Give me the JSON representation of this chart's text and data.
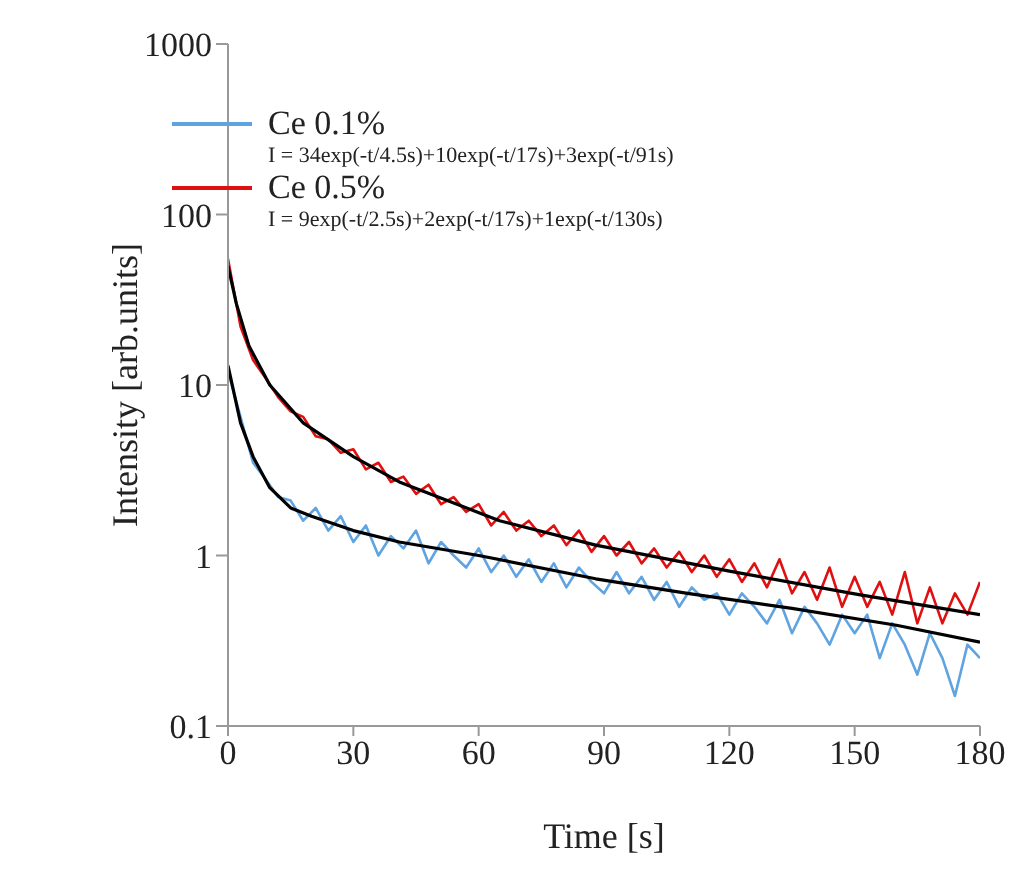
{
  "chart_data": {
    "type": "line",
    "xlabel": "Time [s]",
    "ylabel": "Intensity [arb.units]",
    "log": "y",
    "xlim": [
      0,
      180
    ],
    "xticks": [
      0,
      30,
      60,
      90,
      120,
      150,
      180
    ],
    "ylim": [
      0.1,
      1000
    ],
    "yticks": [
      {
        "value": 0.1,
        "label": "0.1"
      },
      1,
      10,
      100,
      1000
    ],
    "grid": false,
    "legend": "top",
    "marker": "none",
    "line_style": "solid",
    "annotations": [
      "I = 34exp(-t/4.5s)+10exp(-t/17s)+3exp(-t/91s)",
      "I = 9exp(-t/2.5s)+2exp(-t/17s)+1exp(-t/130s)"
    ],
    "series": [
      {
        "name": "Ce 0.1%",
        "color": "#5fa3e0",
        "x": [
          0,
          3,
          6,
          9,
          12,
          15,
          18,
          21,
          24,
          27,
          30,
          33,
          36,
          39,
          42,
          45,
          48,
          51,
          54,
          57,
          60,
          63,
          66,
          69,
          72,
          75,
          78,
          81,
          84,
          87,
          90,
          93,
          96,
          99,
          102,
          105,
          108,
          111,
          114,
          117,
          120,
          123,
          126,
          129,
          132,
          135,
          138,
          141,
          144,
          147,
          150,
          153,
          156,
          159,
          162,
          165,
          168,
          171,
          174,
          177,
          180
        ],
        "values": [
          12,
          6.5,
          3.5,
          2.8,
          2.2,
          2.1,
          1.6,
          1.9,
          1.4,
          1.7,
          1.2,
          1.5,
          1.0,
          1.3,
          1.1,
          1.4,
          0.9,
          1.2,
          1.0,
          0.85,
          1.1,
          0.8,
          1.0,
          0.75,
          0.95,
          0.7,
          0.9,
          0.65,
          0.85,
          0.7,
          0.6,
          0.8,
          0.6,
          0.75,
          0.55,
          0.7,
          0.5,
          0.65,
          0.55,
          0.6,
          0.45,
          0.6,
          0.5,
          0.4,
          0.55,
          0.35,
          0.5,
          0.4,
          0.3,
          0.45,
          0.35,
          0.45,
          0.25,
          0.4,
          0.3,
          0.2,
          0.35,
          0.25,
          0.15,
          0.3,
          0.25
        ]
      },
      {
        "name": "Ce 0.5%",
        "color": "#e01010",
        "x": [
          0,
          3,
          6,
          9,
          12,
          15,
          18,
          21,
          24,
          27,
          30,
          33,
          36,
          39,
          42,
          45,
          48,
          51,
          54,
          57,
          60,
          63,
          66,
          69,
          72,
          75,
          78,
          81,
          84,
          87,
          90,
          93,
          96,
          99,
          102,
          105,
          108,
          111,
          114,
          117,
          120,
          123,
          126,
          129,
          132,
          135,
          138,
          141,
          144,
          147,
          150,
          153,
          156,
          159,
          162,
          165,
          168,
          171,
          174,
          177,
          180
        ],
        "values": [
          55,
          22,
          14,
          11,
          8.5,
          7,
          6.5,
          5,
          4.8,
          4.0,
          4.2,
          3.2,
          3.5,
          2.7,
          2.9,
          2.3,
          2.6,
          2.0,
          2.2,
          1.8,
          2.0,
          1.5,
          1.8,
          1.4,
          1.6,
          1.3,
          1.5,
          1.15,
          1.4,
          1.05,
          1.3,
          1.0,
          1.2,
          0.9,
          1.1,
          0.85,
          1.05,
          0.8,
          1.0,
          0.75,
          0.95,
          0.7,
          0.9,
          0.65,
          0.95,
          0.6,
          0.8,
          0.55,
          0.85,
          0.5,
          0.75,
          0.5,
          0.7,
          0.45,
          0.8,
          0.4,
          0.65,
          0.4,
          0.6,
          0.45,
          0.7
        ]
      },
      {
        "color": "#000000",
        "x": [
          0,
          3,
          6,
          10,
          15,
          20,
          30,
          41,
          60,
          88,
          110,
          135,
          160,
          180
        ],
        "values": [
          13,
          6,
          3.8,
          2.5,
          1.9,
          1.7,
          1.4,
          1.2,
          1.0,
          0.73,
          0.6,
          0.49,
          0.39,
          0.31
        ]
      },
      {
        "color": "#000000",
        "x": [
          0,
          2,
          5,
          10,
          18,
          30,
          41,
          65,
          88,
          120,
          151,
          180
        ],
        "values": [
          50,
          30,
          17,
          10,
          6,
          3.8,
          2.7,
          1.6,
          1.15,
          0.81,
          0.59,
          0.45
        ]
      }
    ]
  }
}
